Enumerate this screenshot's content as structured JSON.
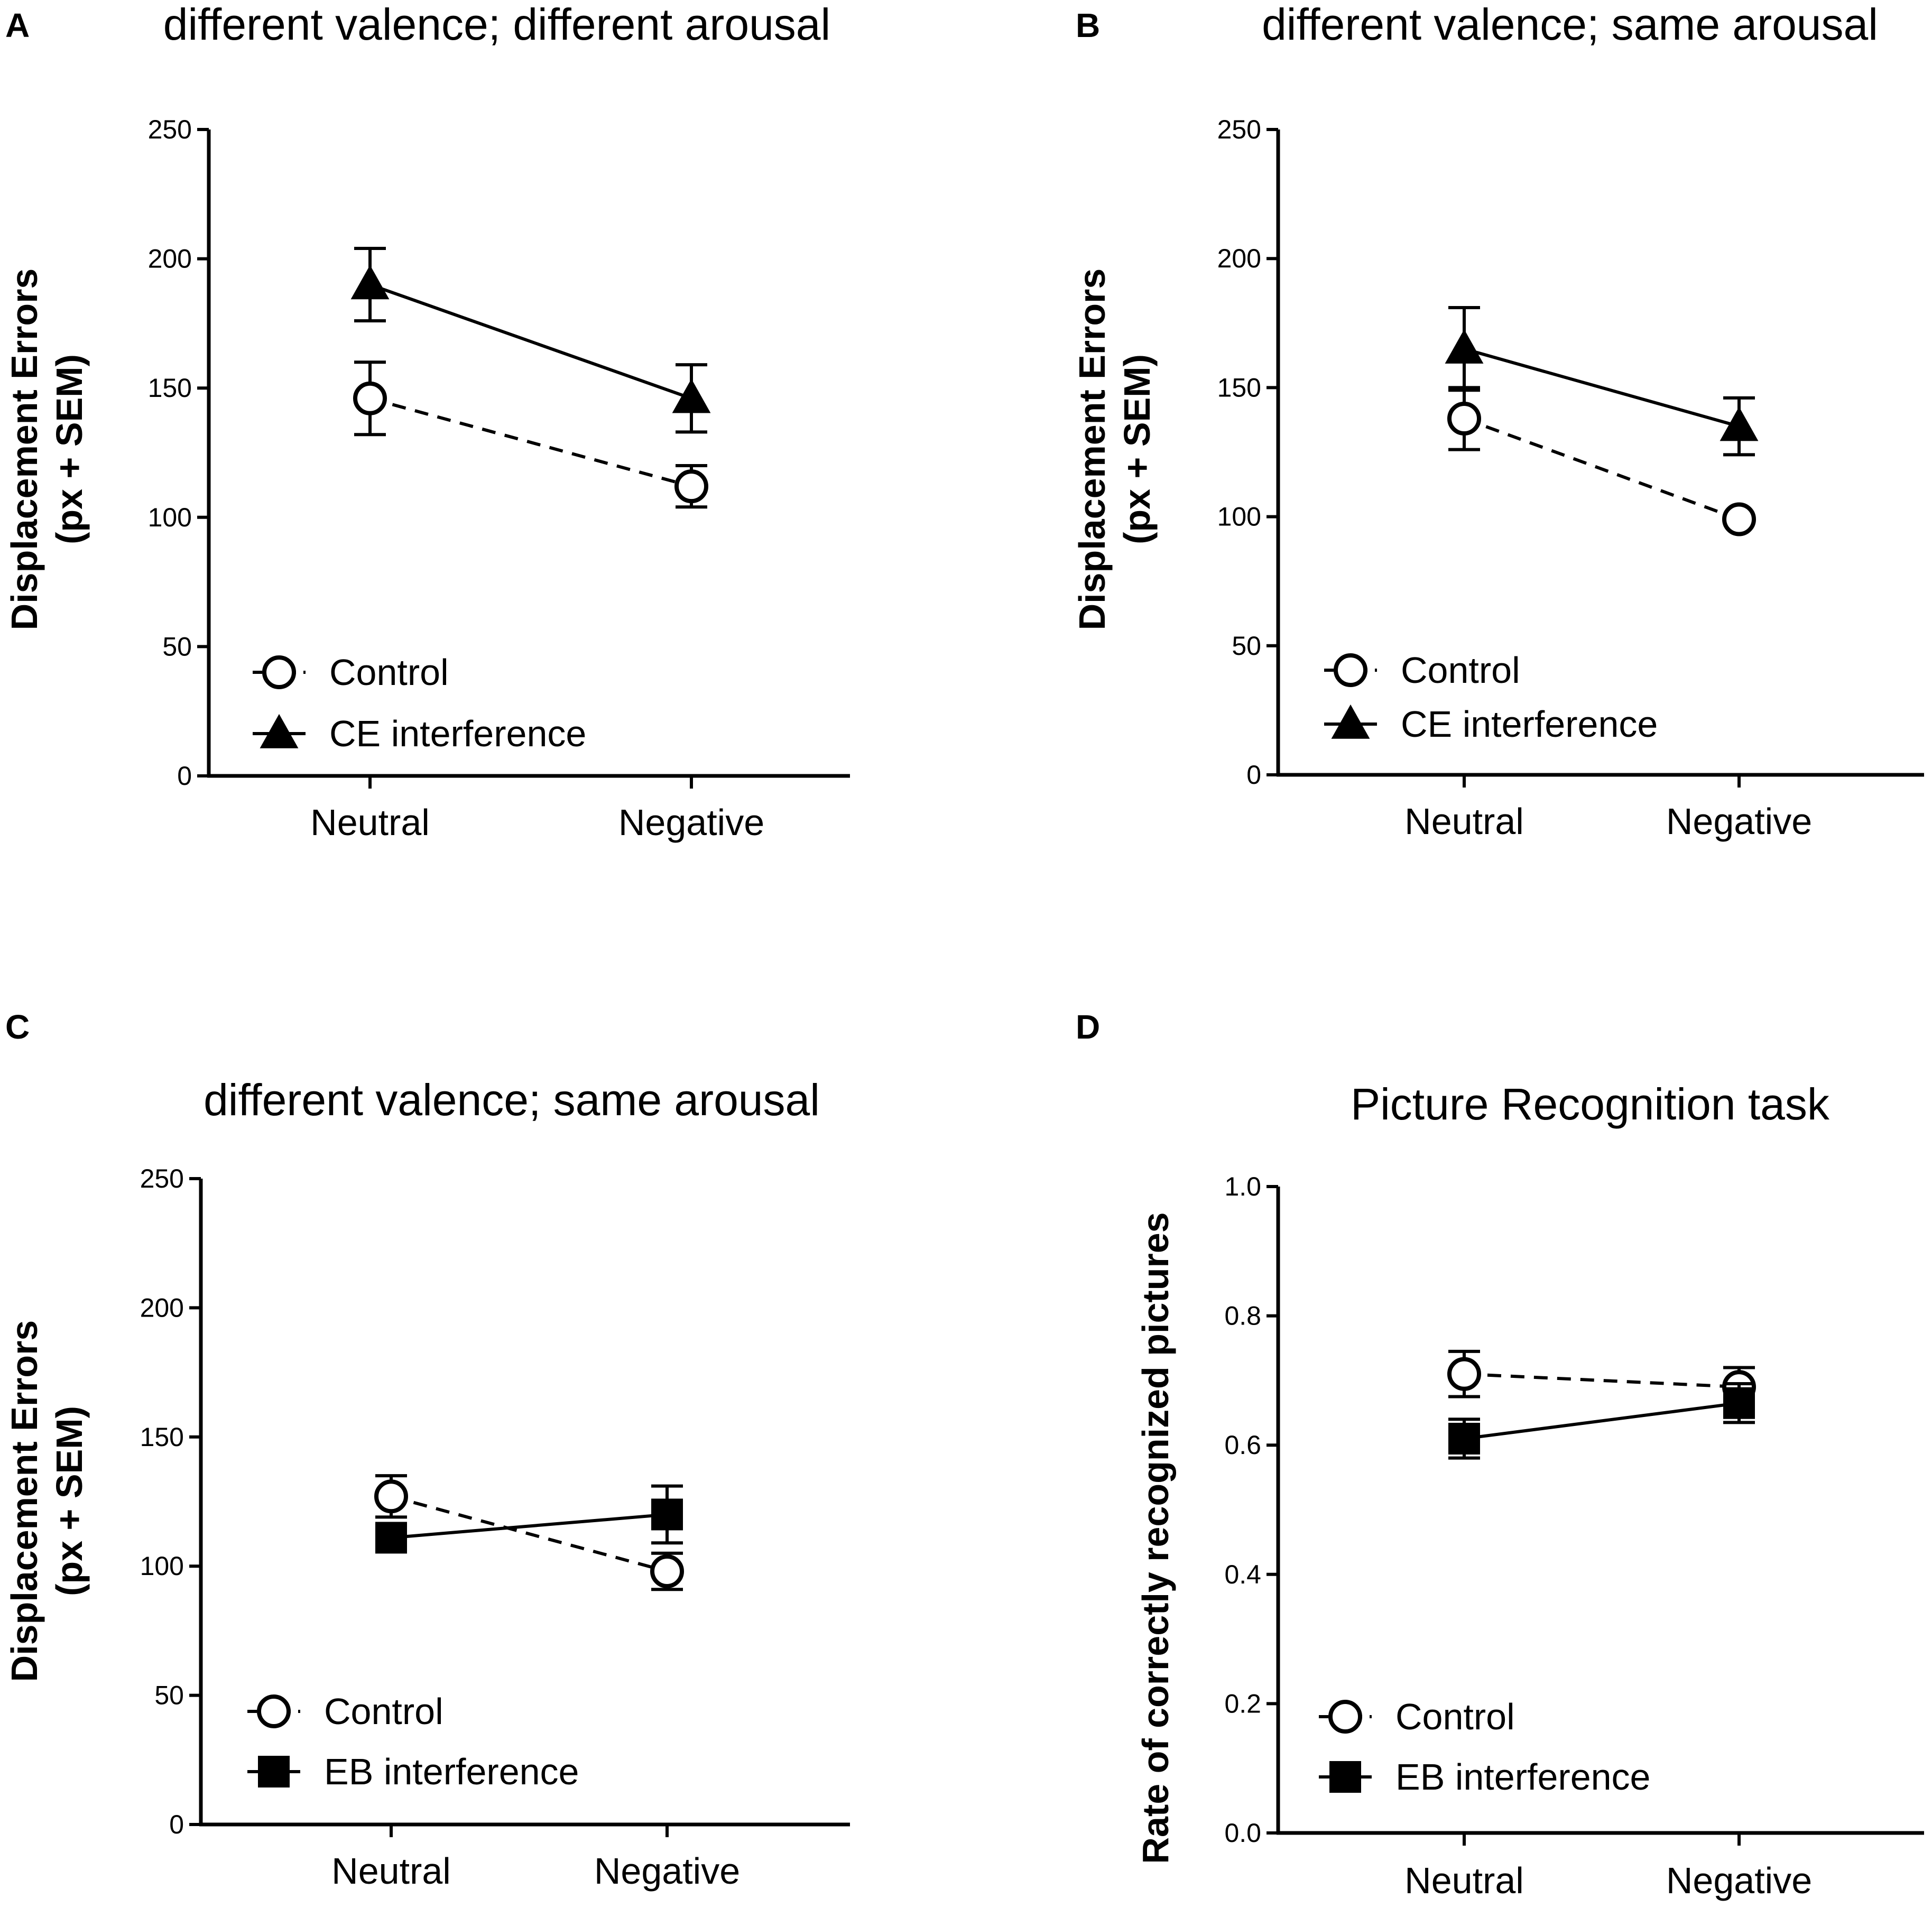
{
  "chart_data": [
    {
      "panel": "A",
      "type": "line",
      "title": "different valence; different arousal",
      "ylabel_lines": [
        "Displacement Errors",
        "(px + SEM)"
      ],
      "xlabel": "",
      "categories": [
        "Neutral",
        "Negative"
      ],
      "ylim": [
        0,
        250
      ],
      "yticks": [
        0,
        50,
        100,
        150,
        200,
        250
      ],
      "series": [
        {
          "name": "Control",
          "marker": "circle-open",
          "line": "dashed",
          "values": [
            146,
            112
          ],
          "sem": [
            14,
            8
          ]
        },
        {
          "name": "CE interference",
          "marker": "triangle-filled",
          "line": "solid",
          "values": [
            190,
            146
          ],
          "sem": [
            14,
            13
          ]
        }
      ]
    },
    {
      "panel": "B",
      "type": "line",
      "title": "different valence; same arousal",
      "ylabel_lines": [
        "Displacement Errors",
        "(px + SEM)"
      ],
      "xlabel": "",
      "categories": [
        "Neutral",
        "Negative"
      ],
      "ylim": [
        0,
        250
      ],
      "yticks": [
        0,
        50,
        100,
        150,
        200,
        250
      ],
      "series": [
        {
          "name": "Control",
          "marker": "circle-open",
          "line": "dashed",
          "values": [
            138,
            99
          ],
          "sem": [
            12,
            0
          ]
        },
        {
          "name": "CE interference",
          "marker": "triangle-filled",
          "line": "solid",
          "values": [
            165,
            135
          ],
          "sem": [
            16,
            11
          ]
        }
      ]
    },
    {
      "panel": "C",
      "type": "line",
      "title": "different valence; same arousal",
      "ylabel_lines": [
        "Displacement Errors",
        "(px + SEM)"
      ],
      "xlabel": "",
      "categories": [
        "Neutral",
        "Negative"
      ],
      "ylim": [
        0,
        250
      ],
      "yticks": [
        0,
        50,
        100,
        150,
        200,
        250
      ],
      "series": [
        {
          "name": "Control",
          "marker": "circle-open",
          "line": "dashed",
          "values": [
            127,
            98
          ],
          "sem": [
            8,
            7
          ]
        },
        {
          "name": "EB interference",
          "marker": "square-filled",
          "line": "solid",
          "values": [
            111,
            120
          ],
          "sem": [
            0,
            11
          ]
        }
      ]
    },
    {
      "panel": "D",
      "type": "line",
      "title": "Picture Recognition task",
      "ylabel_lines": [
        "Rate of correctly recognized pictures"
      ],
      "xlabel": "",
      "categories": [
        "Neutral",
        "Negative"
      ],
      "ylim": [
        0,
        1
      ],
      "yticks": [
        "0.0",
        "0.2",
        "0.4",
        "0.6",
        "0.8",
        "1.0"
      ],
      "series": [
        {
          "name": "Control",
          "marker": "circle-open",
          "line": "dashed",
          "values": [
            0.71,
            0.69
          ],
          "sem": [
            0.035,
            0.03
          ]
        },
        {
          "name": "EB interference",
          "marker": "square-filled",
          "line": "solid",
          "values": [
            0.61,
            0.665
          ],
          "sem": [
            0.03,
            0.03
          ]
        }
      ]
    }
  ]
}
